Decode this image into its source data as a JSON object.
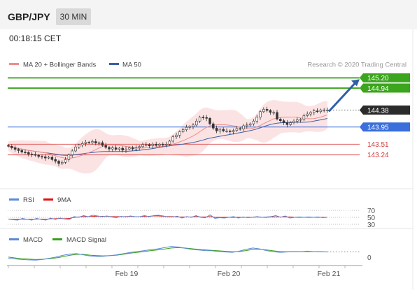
{
  "header": {
    "pair": "GBP/JPY",
    "timeframe": "30 MIN",
    "time": "00:18:15 CET"
  },
  "credit": "Research © 2020 Trading Central",
  "colors": {
    "ma20": "#f08c8c",
    "ma50": "#3a5fa8",
    "rsi": "#5b8ad6",
    "rsi9ma": "#e01010",
    "macd": "#5b8ad6",
    "signal": "#38a01c",
    "green": "#3ca51e",
    "blue": "#3b6fdc",
    "red": "#e05a5a"
  },
  "chart_data": [
    {
      "type": "line",
      "name": "price",
      "legend": [
        "MA 20 + Bollinger Bands",
        "MA 50"
      ],
      "x_ticks": [
        "Feb 19",
        "Feb 20",
        "Feb 21"
      ],
      "ylim": [
        142.45,
        145.35
      ],
      "close": [
        143.46,
        143.42,
        143.38,
        143.35,
        143.31,
        143.3,
        143.26,
        143.25,
        143.23,
        143.2,
        143.19,
        143.16,
        143.18,
        143.12,
        143.08,
        143.02,
        143.05,
        143.12,
        143.24,
        143.34,
        143.44,
        143.49,
        143.53,
        143.56,
        143.55,
        143.58,
        143.54,
        143.55,
        143.48,
        143.43,
        143.39,
        143.42,
        143.38,
        143.41,
        143.36,
        143.39,
        143.42,
        143.39,
        143.42,
        143.45,
        143.5,
        143.5,
        143.47,
        143.51,
        143.48,
        143.51,
        143.5,
        143.51,
        143.59,
        143.7,
        143.74,
        143.83,
        143.88,
        143.94,
        143.96,
        144,
        144.1,
        144.2,
        144.19,
        144.17,
        144.03,
        143.92,
        143.85,
        143.89,
        143.85,
        143.85,
        143.83,
        143.86,
        143.91,
        143.9,
        143.98,
        144,
        144.03,
        144.1,
        144.2,
        144.34,
        144.4,
        144.37,
        144.32,
        144.32,
        144.15,
        144.11,
        144.06,
        144.01,
        144.06,
        144.1,
        144.13,
        144.14,
        144.24,
        144.28,
        144.32,
        144.36,
        144.34,
        144.38,
        144.38,
        144.38
      ],
      "levels": [
        {
          "label": "145.20",
          "value": 145.2,
          "color": "#3ca51e"
        },
        {
          "label": "144.94",
          "value": 144.94,
          "color": "#3ca51e"
        },
        {
          "label": "144.38",
          "value": 144.38,
          "color": "#222222"
        },
        {
          "label": "143.95",
          "value": 143.95,
          "color": "#3b6fdc"
        },
        {
          "label": "143.51",
          "value": 143.51,
          "color": "#e05a5a"
        },
        {
          "label": "143.24",
          "value": 143.24,
          "color": "#e05a5a"
        }
      ],
      "arrow_target": 145.2
    },
    {
      "type": "line",
      "name": "rsi",
      "legend": [
        "RSI",
        "9MA"
      ],
      "y_ticks": [
        "70",
        "50",
        "30"
      ],
      "ylim": [
        20,
        80
      ],
      "rsi": [
        45,
        43,
        42,
        47,
        44,
        42,
        47,
        44,
        42,
        48,
        44,
        48,
        45,
        44,
        52,
        50,
        55,
        52,
        56,
        54,
        52,
        54,
        51,
        49,
        53,
        51,
        54,
        52,
        52,
        55,
        52,
        55,
        56,
        54,
        51,
        51,
        53,
        48,
        52,
        50,
        55,
        50,
        49,
        57,
        47,
        49,
        48,
        50,
        52,
        48,
        51,
        49,
        50,
        52,
        50,
        51,
        52,
        55,
        50,
        54,
        48,
        50,
        51,
        50,
        51,
        50,
        51,
        49,
        50
      ],
      "ma9": [
        45,
        44,
        44,
        45,
        44,
        44,
        45,
        45,
        44,
        46,
        46,
        47,
        46,
        47,
        50,
        51,
        52,
        52,
        53,
        53,
        53,
        53,
        52,
        52,
        52,
        52,
        53,
        52,
        52,
        53,
        53,
        54,
        54,
        53,
        52,
        52,
        51,
        51,
        51,
        51,
        52,
        51,
        51,
        52,
        50,
        50,
        50,
        50,
        50,
        50,
        50,
        50,
        50,
        51,
        50,
        50,
        51,
        51,
        51,
        51,
        51,
        50,
        50,
        50,
        50,
        50,
        50,
        50,
        50
      ]
    },
    {
      "type": "line",
      "name": "macd",
      "legend": [
        "MACD",
        "MACD Signal"
      ],
      "y_ticks": [
        "0"
      ],
      "ylim": [
        -1,
        1
      ],
      "macd": [
        -0.45,
        -0.5,
        -0.55,
        -0.58,
        -0.6,
        -0.55,
        -0.45,
        -0.35,
        -0.2,
        -0.1,
        -0.05,
        -0.15,
        -0.25,
        -0.3,
        -0.28,
        -0.22,
        -0.15,
        -0.05,
        0.05,
        0.12,
        0.2,
        0.28,
        0.35,
        0.45,
        0.55,
        0.5,
        0.4,
        0.3,
        0.25,
        0.2,
        0.18,
        0.12,
        0.08,
        0.05,
        0.15,
        0.3,
        0.42,
        0.35,
        0.2,
        0.1,
        0.05,
        0.08,
        0.12,
        0.1,
        0.15,
        0.12,
        0.1,
        0.08
      ],
      "signal": [
        -0.35,
        -0.42,
        -0.48,
        -0.52,
        -0.55,
        -0.53,
        -0.48,
        -0.42,
        -0.32,
        -0.2,
        -0.12,
        -0.12,
        -0.18,
        -0.22,
        -0.24,
        -0.22,
        -0.18,
        -0.1,
        -0.02,
        0.05,
        0.12,
        0.2,
        0.26,
        0.33,
        0.42,
        0.45,
        0.42,
        0.36,
        0.3,
        0.26,
        0.22,
        0.18,
        0.14,
        0.1,
        0.12,
        0.2,
        0.3,
        0.32,
        0.26,
        0.18,
        0.12,
        0.1,
        0.11,
        0.1,
        0.12,
        0.11,
        0.1,
        0.09
      ]
    }
  ]
}
